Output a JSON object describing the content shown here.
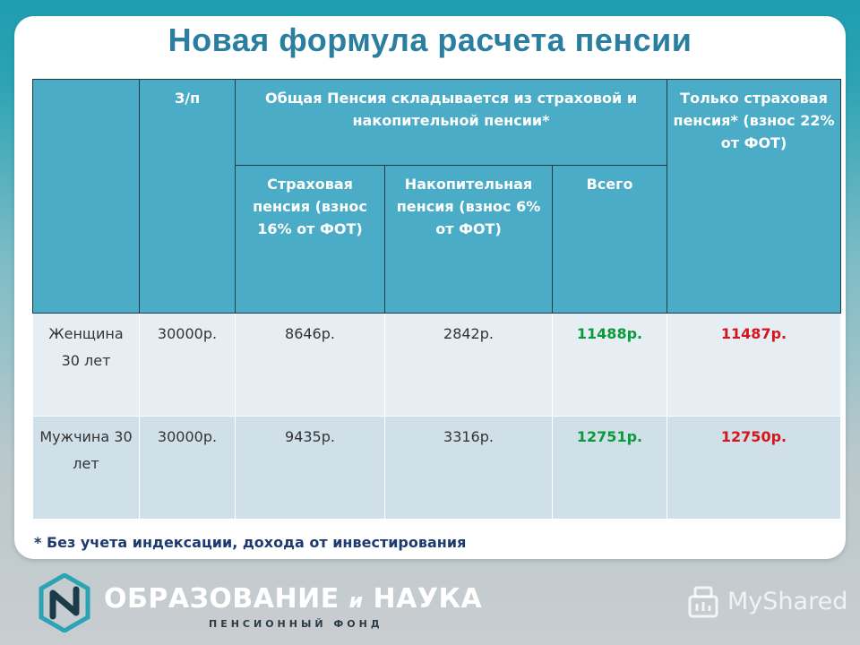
{
  "title": "Новая формула расчета пенсии",
  "table": {
    "headers": {
      "salary": "З/п",
      "general": "Общая Пенсия складывается из страховой и накопительной пенсии*",
      "insurance_only": "Только страховая пенсия* (взнос 22% от ФОТ)",
      "insurance": "Страховая пенсия (взнос 16% от ФОТ)",
      "funded": "Накопительная пенсия (взнос 6% от ФОТ)",
      "total": "Всего"
    },
    "rows": [
      {
        "label": "Женщина 30 лет",
        "salary": "30000р.",
        "insurance": "8646р.",
        "funded": "2842р.",
        "total": "11488р.",
        "insurance_only": "11487р."
      },
      {
        "label": "Мужчина 30 лет",
        "salary": "30000р.",
        "insurance": "9435р.",
        "funded": "3316р.",
        "total": "12751р.",
        "insurance_only": "12750р."
      }
    ]
  },
  "footnote": "* Без учета индексации, дохода от инвестирования",
  "logo": {
    "title_part1": "ОБРАЗОВАНИЕ",
    "title_connector": "и",
    "title_part2": "НАУКА",
    "subtitle": "ПЕНСИОННЫЙ ФОНД"
  },
  "watermark": "MyShared",
  "colors": {
    "header_bg": "#4aacc6",
    "title": "#2a7fa0",
    "total_value": "#0a9a3a",
    "insurance_only_value": "#d4161c"
  }
}
